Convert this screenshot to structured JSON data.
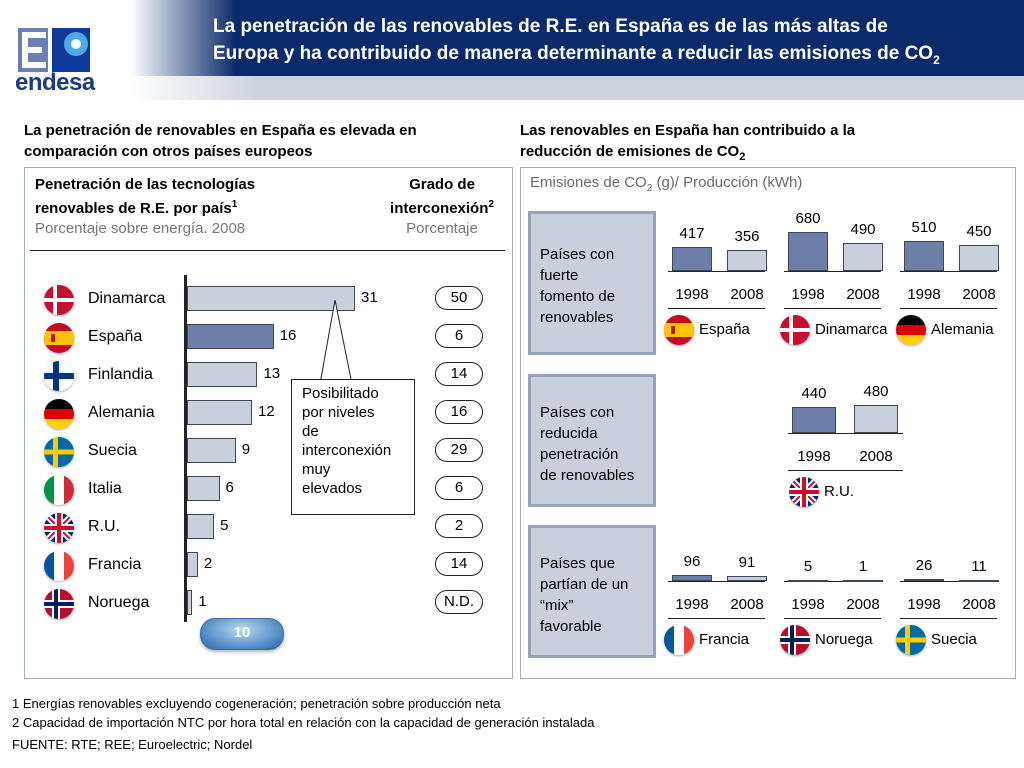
{
  "header": {
    "title_line1": "La penetración de las renovables de R.E. en España es de las más altas de",
    "title_line2": "Europa y ha contribuido de manera determinante a reducir las emisiones de CO",
    "title_sub": "2",
    "logo_text": "endesa"
  },
  "left": {
    "heading_line1": "La penetración de renovables en España es elevada en",
    "heading_line2": "comparación con otros países europeos",
    "panel_title_line1": "Penetración de las tecnologías",
    "panel_title_line2": "renovables de R.E. por país",
    "panel_title_sup": "1",
    "panel_subtitle": "Porcentaje sobre energía. 2008",
    "col2_title_line1": "Grado de",
    "col2_title_line2": "interconexión",
    "col2_title_sup": "2",
    "col2_subtitle": "Porcentaje",
    "callout_lines": [
      "Posibilitado",
      "por niveles",
      "de",
      "interconexión",
      "muy",
      "elevados"
    ],
    "average_badge": "10"
  },
  "right": {
    "heading_line1": "Las renovables en España han contribuido a la",
    "heading_line2": "reducción de emisiones de CO",
    "heading_sub": "2",
    "panel_title_pre": "Emisiones de CO",
    "panel_title_sub": "2",
    "panel_title_post": " (g)/ Producción (kWh)",
    "groups": [
      {
        "label_lines": [
          "Países con",
          "fuerte",
          "fomento de",
          "renovables"
        ]
      },
      {
        "label_lines": [
          "Países con",
          "reducida",
          "penetración",
          "de renovables"
        ]
      },
      {
        "label_lines": [
          "Países que",
          "partían de un",
          "“mix”",
          "favorable"
        ]
      }
    ]
  },
  "footnotes": [
    "1 Energías renovables excluyendo cogeneración; penetración sobre producción neta",
    "2 Capacidad de importación NTC por hora total en relación con la capacidad de generación instalada",
    "FUENTE: RTE; REE; Euroelectric; Nordel"
  ],
  "colors": {
    "header_blue": "#0b2a6b",
    "bar_fill": "#c9d0dc",
    "bar_highlight": "#6b7fa8",
    "panel_border": "#a6adba"
  },
  "chart_data": [
    {
      "type": "bar",
      "orientation": "horizontal",
      "title": "Penetración de las tecnologías renovables de R.E. por país",
      "subtitle": "Porcentaje sobre energía. 2008",
      "categories": [
        "Dinamarca",
        "España",
        "Finlandia",
        "Alemania",
        "Suecia",
        "Italia",
        "R.U.",
        "Francia",
        "Noruega"
      ],
      "values": [
        31,
        16,
        13,
        12,
        9,
        6,
        5,
        2,
        1
      ],
      "flags": [
        "flag-denmark-icon",
        "flag-spain-icon",
        "flag-finland-icon",
        "flag-germany-icon",
        "flag-sweden-icon",
        "flag-italy-icon",
        "flag-uk-icon",
        "flag-france-icon",
        "flag-norway-icon"
      ],
      "highlight": "España",
      "xlim": [
        0,
        31
      ]
    },
    {
      "type": "table",
      "title": "Grado de interconexión",
      "subtitle": "Porcentaje",
      "categories": [
        "Dinamarca",
        "España",
        "Finlandia",
        "Alemania",
        "Suecia",
        "Italia",
        "R.U.",
        "Francia",
        "Noruega"
      ],
      "values": [
        "50",
        "6",
        "14",
        "16",
        "29",
        "6",
        "2",
        "14",
        "N.D."
      ]
    },
    {
      "type": "bar",
      "title": "Emisiones de CO2 (g)/ Producción (kWh)",
      "x": [
        "1998",
        "2008"
      ],
      "countries": [
        {
          "name": "España",
          "flag": "flag-spain-icon",
          "values": [
            417,
            356
          ]
        },
        {
          "name": "Dinamarca",
          "flag": "flag-denmark-icon",
          "values": [
            680,
            490
          ]
        },
        {
          "name": "Alemania",
          "flag": "flag-germany-icon",
          "values": [
            510,
            450
          ]
        },
        {
          "name": "R.U.",
          "flag": "flag-uk-icon",
          "values": [
            440,
            480
          ]
        },
        {
          "name": "Francia",
          "flag": "flag-france-icon",
          "values": [
            96,
            91
          ]
        },
        {
          "name": "Noruega",
          "flag": "flag-norway-icon",
          "values": [
            5,
            1
          ]
        },
        {
          "name": "Suecia",
          "flag": "flag-sweden-icon",
          "values": [
            26,
            11
          ]
        }
      ]
    }
  ]
}
